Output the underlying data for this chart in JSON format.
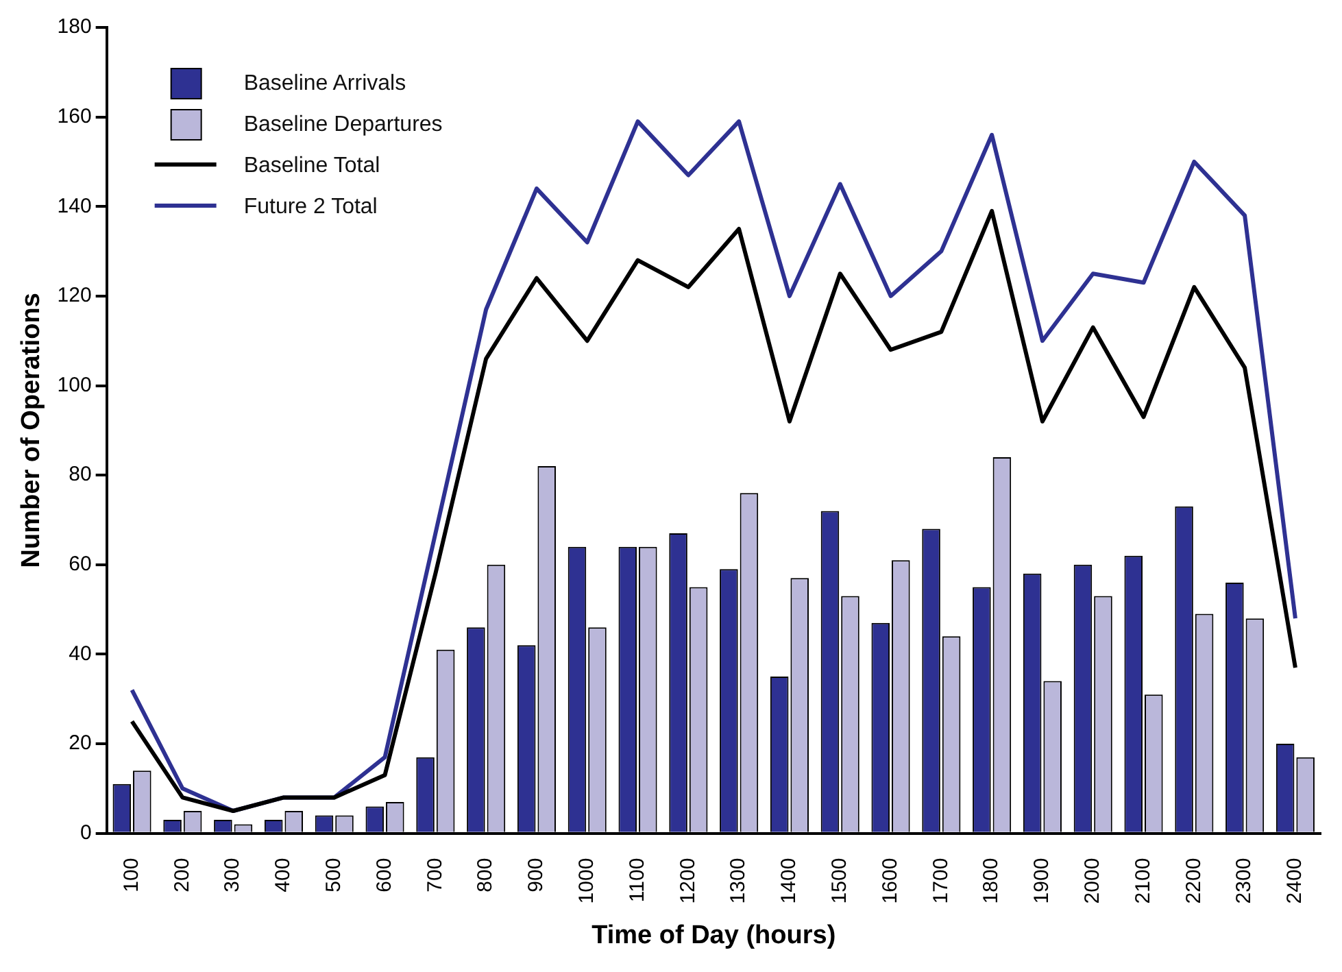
{
  "chart_data": {
    "type": "bar",
    "xlabel": "Time of Day (hours)",
    "ylabel": "Number of Operations",
    "categories": [
      "100",
      "200",
      "300",
      "400",
      "500",
      "600",
      "700",
      "800",
      "900",
      "1000",
      "1100",
      "1200",
      "1300",
      "1400",
      "1500",
      "1600",
      "1700",
      "1800",
      "1900",
      "2000",
      "2100",
      "2200",
      "2300",
      "2400"
    ],
    "series": [
      {
        "name": "Baseline Arrivals",
        "color": "#2e3192",
        "values": [
          11,
          3,
          3,
          3,
          4,
          6,
          17,
          46,
          42,
          64,
          64,
          67,
          59,
          35,
          72,
          47,
          68,
          55,
          58,
          60,
          62,
          73,
          56,
          20
        ]
      },
      {
        "name": "Baseline Departures",
        "color": "#bab7da",
        "values": [
          14,
          5,
          2,
          5,
          4,
          7,
          41,
          60,
          82,
          46,
          64,
          55,
          76,
          57,
          53,
          61,
          44,
          84,
          34,
          53,
          31,
          49,
          48,
          17
        ]
      },
      {
        "name": "Baseline Total",
        "type": "line",
        "color": "#000000",
        "values": [
          25,
          8,
          5,
          8,
          8,
          13,
          58,
          106,
          124,
          110,
          128,
          122,
          135,
          92,
          125,
          108,
          112,
          139,
          92,
          113,
          93,
          122,
          104,
          37
        ]
      },
      {
        "name": "Future 2 Total",
        "type": "line",
        "color": "#2e3192",
        "values": [
          32,
          10,
          5,
          8,
          8,
          17,
          67,
          117,
          144,
          132,
          159,
          147,
          159,
          120,
          145,
          120,
          130,
          156,
          110,
          125,
          123,
          150,
          138,
          48
        ]
      }
    ],
    "ylim": [
      0,
      180
    ],
    "yticks": [
      0,
      20,
      40,
      60,
      80,
      100,
      120,
      140,
      160,
      180
    ],
    "grid": false,
    "legend": "top left",
    "marker": "none",
    "line_style": "solid"
  }
}
